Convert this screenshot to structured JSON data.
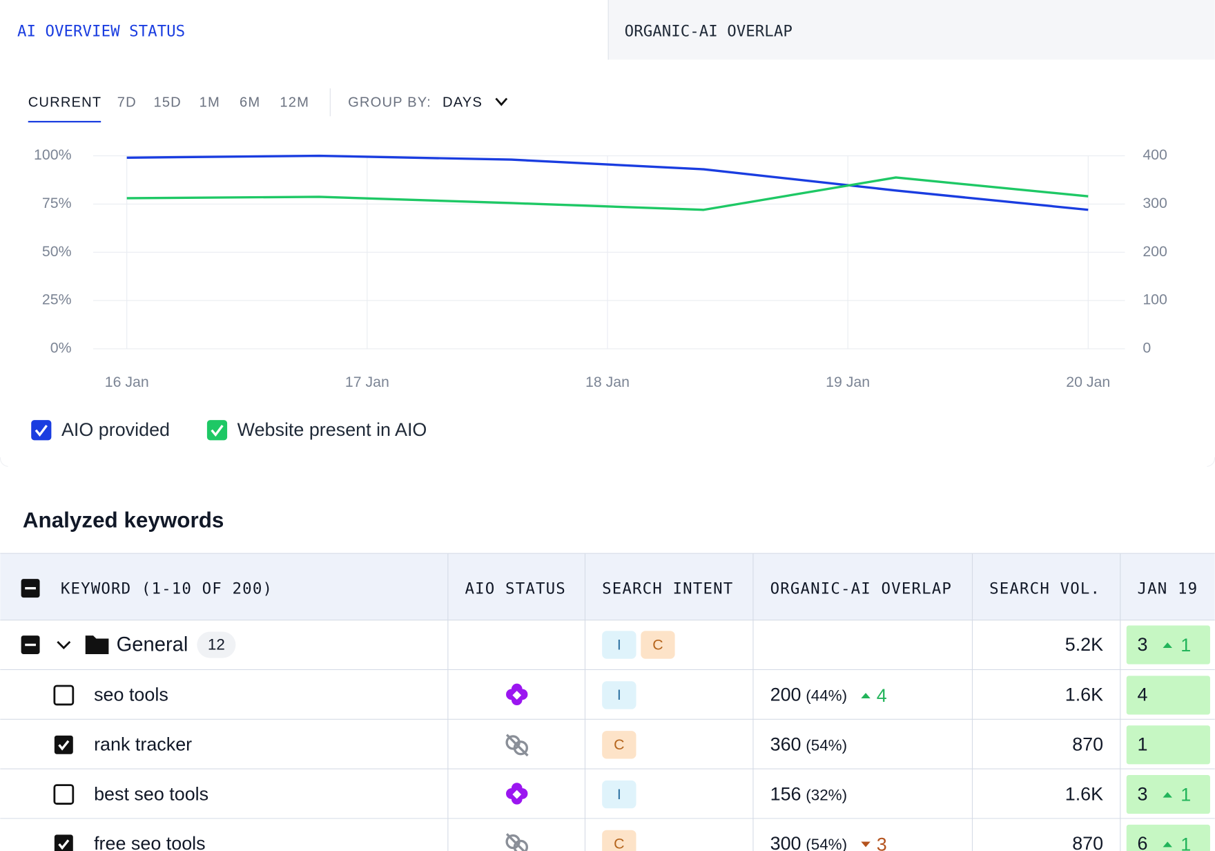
{
  "tabs": [
    {
      "label": "AI OVERVIEW STATUS",
      "active": true
    },
    {
      "label": "ORGANIC-AI OVERLAP",
      "active": false
    }
  ],
  "filters": {
    "ranges": [
      "CURRENT",
      "7D",
      "15D",
      "1M",
      "6M",
      "12M"
    ],
    "active": 0,
    "group_by_label": "GROUP BY:",
    "group_by_value": "DAYS"
  },
  "chart_data": {
    "type": "line",
    "x": [
      0,
      0.8,
      1.6,
      2.4,
      3.2,
      4
    ],
    "xlim": [
      -0.14,
      4.14
    ],
    "xticks": [
      {
        "value": 0,
        "label": "16 Jan"
      },
      {
        "value": 1,
        "label": "17 Jan"
      },
      {
        "value": 2,
        "label": "18 Jan"
      },
      {
        "value": 3,
        "label": "19 Jan"
      },
      {
        "value": 4,
        "label": "20 Jan"
      }
    ],
    "ylim": [
      0,
      100
    ],
    "yticks": [
      {
        "value": 0,
        "label": "0%"
      },
      {
        "value": 25,
        "label": "25%"
      },
      {
        "value": 50,
        "label": "50%"
      },
      {
        "value": 75,
        "label": "75%"
      },
      {
        "value": 100,
        "label": "100%"
      }
    ],
    "y2lim": [
      0,
      400
    ],
    "y2ticks": [
      0,
      100,
      200,
      300,
      400
    ],
    "grid": true,
    "series": [
      {
        "name": "AIO provided",
        "color": "#1a3de0",
        "values": [
          99,
          100,
          98,
          93,
          82,
          72
        ]
      },
      {
        "name": "Website present in AIO",
        "color": "#1ec865",
        "axis": "y2",
        "values": [
          312,
          315,
          302,
          288,
          355,
          316
        ]
      }
    ]
  },
  "table": {
    "title": "Analyzed keywords",
    "header_selection": "partial",
    "columns": [
      "KEYWORD (1-10 OF 200)",
      "AIO STATUS",
      "SEARCH INTENT",
      "ORGANIC-AI OVERLAP",
      "SEARCH VOL.",
      "JAN 19"
    ],
    "group": {
      "selection": "partial",
      "name": "General",
      "count": 12,
      "intents": [
        "I",
        "C"
      ],
      "search_vol": "5.2K",
      "rank": 3,
      "rank_change": 1,
      "rank_dir": "up"
    },
    "rows": [
      {
        "checked": false,
        "keyword": "seo tools",
        "aio": true,
        "intents": [
          "I"
        ],
        "overlap": 200,
        "overlap_pct": "(44%)",
        "overlap_change": 4,
        "overlap_dir": "up",
        "search_vol": "1.6K",
        "rank": 4
      },
      {
        "checked": true,
        "keyword": "rank tracker",
        "aio": false,
        "intents": [
          "C"
        ],
        "overlap": 360,
        "overlap_pct": "(54%)",
        "search_vol": "870",
        "rank": 1
      },
      {
        "checked": false,
        "keyword": "best seo tools",
        "aio": true,
        "intents": [
          "I"
        ],
        "overlap": 156,
        "overlap_pct": "(32%)",
        "search_vol": "1.6K",
        "rank": 3,
        "rank_change": 1,
        "rank_dir": "up"
      },
      {
        "checked": true,
        "keyword": "free seo tools",
        "aio": false,
        "intents": [
          "C"
        ],
        "overlap": 300,
        "overlap_pct": "(54%)",
        "overlap_change": 3,
        "overlap_dir": "down",
        "search_vol": "870",
        "rank": 6,
        "rank_change": 1,
        "rank_dir": "up"
      }
    ]
  }
}
